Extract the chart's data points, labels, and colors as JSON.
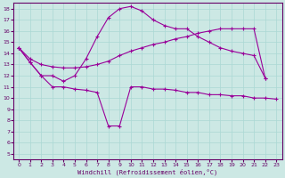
{
  "xlabel": "Windchill (Refroidissement éolien,°C)",
  "background_color": "#cce8e4",
  "grid_color": "#aad8d4",
  "line_color": "#990099",
  "xlim": [
    -0.5,
    23.5
  ],
  "ylim": [
    4.5,
    18.5
  ],
  "xticks": [
    0,
    1,
    2,
    3,
    4,
    5,
    6,
    7,
    8,
    9,
    10,
    11,
    12,
    13,
    14,
    15,
    16,
    17,
    18,
    19,
    20,
    21,
    22,
    23
  ],
  "yticks": [
    5,
    6,
    7,
    8,
    9,
    10,
    11,
    12,
    13,
    14,
    15,
    16,
    17,
    18
  ],
  "line1_x": [
    0,
    1,
    2,
    3,
    4,
    5,
    6,
    7,
    8,
    9,
    10,
    11,
    12,
    13,
    14,
    15,
    16,
    17,
    18,
    19,
    20,
    21,
    22,
    23
  ],
  "line1_y": [
    14.5,
    13.2,
    12.0,
    11.0,
    11.0,
    10.8,
    10.7,
    10.5,
    7.5,
    7.5,
    11.0,
    11.0,
    10.8,
    10.8,
    10.7,
    10.5,
    10.5,
    10.3,
    10.3,
    10.2,
    10.2,
    10.0,
    10.0,
    9.9
  ],
  "line2_x": [
    0,
    1,
    2,
    3,
    4,
    5,
    6,
    7,
    8,
    9,
    10,
    11,
    12,
    13,
    14,
    15,
    16,
    17,
    18,
    19,
    20,
    21,
    22
  ],
  "line2_y": [
    14.5,
    13.2,
    12.0,
    12.0,
    11.5,
    12.0,
    13.5,
    15.5,
    17.2,
    18.0,
    18.2,
    17.8,
    17.0,
    16.5,
    16.2,
    16.2,
    15.5,
    15.0,
    14.5,
    14.2,
    14.0,
    13.8,
    11.8
  ],
  "line3_x": [
    0,
    1,
    2,
    3,
    4,
    5,
    6,
    7,
    8,
    9,
    10,
    11,
    12,
    13,
    14,
    15,
    16,
    17,
    18,
    19,
    20,
    21,
    22
  ],
  "line3_y": [
    14.5,
    13.5,
    13.0,
    12.8,
    12.7,
    12.7,
    12.8,
    13.0,
    13.3,
    13.8,
    14.2,
    14.5,
    14.8,
    15.0,
    15.3,
    15.5,
    15.8,
    16.0,
    16.2,
    16.2,
    16.2,
    16.2,
    11.8
  ]
}
